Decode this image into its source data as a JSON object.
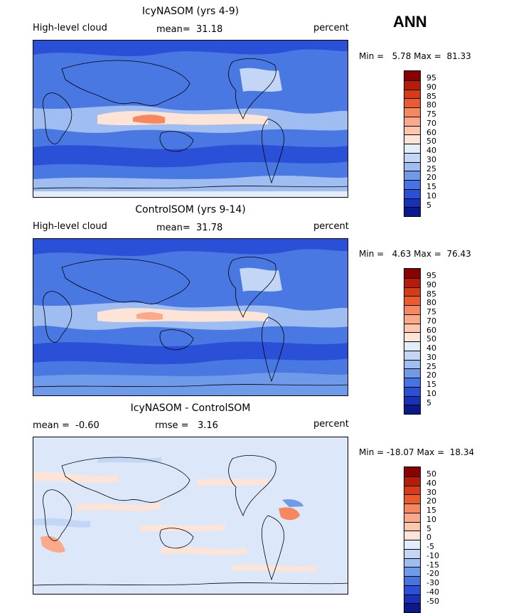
{
  "season": "ANN",
  "panels": [
    {
      "title": "IcyNASOM (yrs 4-9)",
      "left_label": "High-level cloud",
      "center_label": "mean=  31.18",
      "right_label": "percent",
      "minmax": "Min =   5.78 Max =  81.33",
      "colorbar_labels": [
        "95",
        "90",
        "85",
        "80",
        "75",
        "70",
        "60",
        "50",
        "40",
        "30",
        "25",
        "20",
        "15",
        "10",
        "5"
      ],
      "colorbar_colors": [
        "#8b0000",
        "#b81b0a",
        "#d93a16",
        "#ee5a2f",
        "#f7875f",
        "#fca98a",
        "#fdc6ad",
        "#fde4d6",
        "#e3ecfa",
        "#c4d6f6",
        "#9fbdf1",
        "#6f9aea",
        "#4674e3",
        "#2950d6",
        "#1732b8",
        "#0b1a8a"
      ],
      "map_fill": "#4a78e2"
    },
    {
      "title": "ControlSOM (yrs 9-14)",
      "left_label": "High-level cloud",
      "center_label": "mean=  31.78",
      "right_label": "percent",
      "minmax": "Min =   4.63 Max =  76.43",
      "colorbar_labels": [
        "95",
        "90",
        "85",
        "80",
        "75",
        "70",
        "60",
        "50",
        "40",
        "30",
        "25",
        "20",
        "15",
        "10",
        "5"
      ],
      "colorbar_colors": [
        "#8b0000",
        "#b81b0a",
        "#d93a16",
        "#ee5a2f",
        "#f7875f",
        "#fca98a",
        "#fdc6ad",
        "#fde4d6",
        "#e3ecfa",
        "#c4d6f6",
        "#9fbdf1",
        "#6f9aea",
        "#4674e3",
        "#2950d6",
        "#1732b8",
        "#0b1a8a"
      ],
      "map_fill": "#4a78e2"
    },
    {
      "title": "IcyNASOM - ControlSOM",
      "left_label": "mean =  -0.60",
      "center_label": "rmse =   3.16",
      "right_label": "percent",
      "minmax": "Min = -18.07 Max =  18.34",
      "colorbar_labels": [
        "50",
        "40",
        "30",
        "20",
        "15",
        "10",
        "5",
        "0",
        "-5",
        "-10",
        "-15",
        "-20",
        "-30",
        "-40",
        "-50"
      ],
      "colorbar_colors": [
        "#8b0000",
        "#b81b0a",
        "#d93a16",
        "#ee5a2f",
        "#f7875f",
        "#fca98a",
        "#fdc6ad",
        "#fde4d6",
        "#e3ecfa",
        "#c4d6f6",
        "#9fbdf1",
        "#6f9aea",
        "#4674e3",
        "#2950d6",
        "#1732b8",
        "#0b1a8a"
      ],
      "map_fill": "#dce8fa"
    }
  ]
}
